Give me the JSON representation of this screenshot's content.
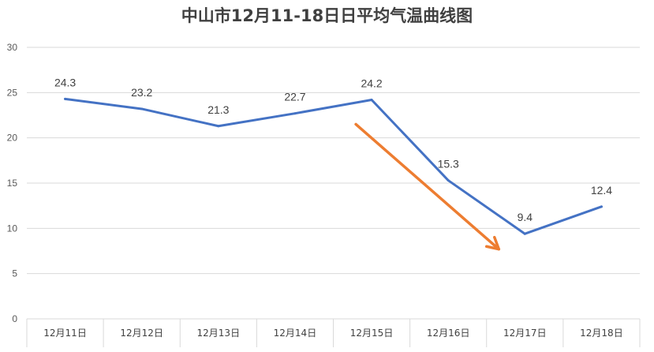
{
  "chart_data": {
    "type": "line",
    "title": "中山市12月11-18日日平均气温曲线图",
    "xlabel": "",
    "ylabel": "",
    "categories": [
      "12月11日",
      "12月12日",
      "12月13日",
      "12月14日",
      "12月15日",
      "12月16日",
      "12月17日",
      "12月18日"
    ],
    "series": [
      {
        "values": [
          24.3,
          23.2,
          21.3,
          22.7,
          24.2,
          15.3,
          9.4,
          12.4
        ]
      }
    ],
    "ylim": [
      0,
      30
    ],
    "yticks": [
      0,
      5,
      10,
      15,
      20,
      25,
      30
    ],
    "grid": true,
    "data_labels": true,
    "legend": "none",
    "annotation": "orange arrow indicating a falling trend from 12月15日 to 12月17日",
    "colors": {
      "line": "#4472C4",
      "arrow": "#ED7D31",
      "grid": "#D9D9D9"
    }
  }
}
